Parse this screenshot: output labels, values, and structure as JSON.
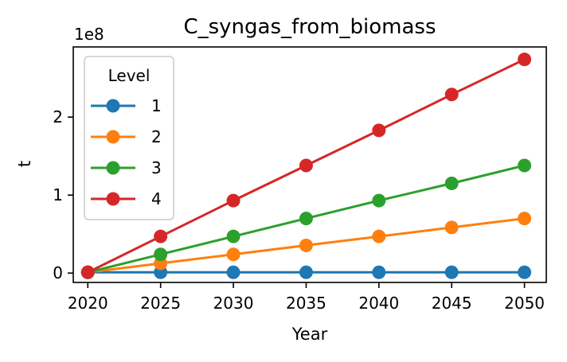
{
  "chart_data": {
    "type": "line",
    "title": "C_syngas_from_biomass",
    "xlabel": "Year",
    "ylabel": "t",
    "y_offset_label": "1e8",
    "x": [
      2020,
      2025,
      2030,
      2035,
      2040,
      2045,
      2050
    ],
    "xlim": [
      2019,
      2051.5
    ],
    "ylim": [
      -12000000,
      290000000
    ],
    "x_ticks": [
      "2020",
      "2025",
      "2030",
      "2035",
      "2040",
      "2045",
      "2050"
    ],
    "y_ticks": [
      {
        "value": 0,
        "label": "0"
      },
      {
        "value": 100000000,
        "label": "1"
      },
      {
        "value": 200000000,
        "label": "2"
      }
    ],
    "grid": false,
    "legend": {
      "title": "Level",
      "placement": "top-left"
    },
    "series": [
      {
        "name": "1",
        "color": "#1f77b4",
        "values": [
          1000000,
          1000000,
          1000000,
          1000000,
          1000000,
          1000000,
          1000000
        ]
      },
      {
        "name": "2",
        "color": "#ff7f0e",
        "values": [
          1000000,
          12500000,
          24000000,
          35500000,
          47000000,
          58500000,
          70000000
        ]
      },
      {
        "name": "3",
        "color": "#2ca02c",
        "values": [
          1000000,
          24000000,
          47000000,
          70000000,
          93000000,
          115000000,
          138000000
        ]
      },
      {
        "name": "4",
        "color": "#d62728",
        "values": [
          1000000,
          47000000,
          93000000,
          138000000,
          183000000,
          229000000,
          274000000
        ]
      }
    ]
  }
}
